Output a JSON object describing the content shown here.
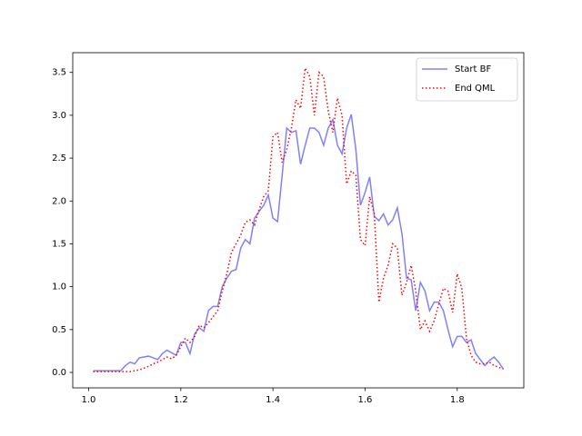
{
  "chart_data": {
    "type": "line",
    "x": [
      1.01,
      1.02,
      1.03,
      1.04,
      1.05,
      1.06,
      1.07,
      1.08,
      1.09,
      1.1,
      1.11,
      1.12,
      1.13,
      1.14,
      1.15,
      1.16,
      1.17,
      1.18,
      1.19,
      1.2,
      1.21,
      1.22,
      1.23,
      1.24,
      1.25,
      1.26,
      1.27,
      1.28,
      1.29,
      1.3,
      1.31,
      1.32,
      1.33,
      1.34,
      1.35,
      1.36,
      1.37,
      1.38,
      1.39,
      1.4,
      1.41,
      1.42,
      1.43,
      1.44,
      1.45,
      1.46,
      1.47,
      1.48,
      1.49,
      1.5,
      1.51,
      1.52,
      1.53,
      1.54,
      1.55,
      1.56,
      1.57,
      1.58,
      1.59,
      1.6,
      1.61,
      1.62,
      1.63,
      1.64,
      1.65,
      1.66,
      1.67,
      1.68,
      1.69,
      1.7,
      1.71,
      1.72,
      1.73,
      1.74,
      1.75,
      1.76,
      1.77,
      1.78,
      1.79,
      1.8,
      1.81,
      1.82,
      1.83,
      1.84,
      1.85,
      1.86,
      1.87,
      1.88,
      1.89,
      1.9
    ],
    "series": [
      {
        "name": "Start BF",
        "color": "#8080ff",
        "linestyle": "solid",
        "values": [
          0.02,
          0.02,
          0.02,
          0.02,
          0.02,
          0.02,
          0.02,
          0.08,
          0.12,
          0.1,
          0.17,
          0.18,
          0.19,
          0.17,
          0.15,
          0.22,
          0.26,
          0.23,
          0.2,
          0.35,
          0.35,
          0.22,
          0.45,
          0.52,
          0.48,
          0.72,
          0.77,
          0.77,
          1.0,
          1.1,
          1.18,
          1.2,
          1.45,
          1.55,
          1.5,
          1.8,
          1.88,
          1.95,
          2.07,
          1.8,
          1.76,
          2.3,
          2.85,
          2.8,
          2.82,
          2.43,
          2.65,
          2.85,
          2.85,
          2.8,
          2.65,
          2.85,
          2.95,
          2.65,
          2.55,
          2.85,
          3.01,
          2.6,
          1.95,
          2.1,
          2.28,
          1.82,
          1.77,
          1.85,
          1.72,
          1.78,
          1.92,
          1.62,
          1.1,
          1.08,
          0.72,
          1.05,
          0.95,
          0.72,
          0.82,
          0.82,
          0.72,
          0.5,
          0.3,
          0.42,
          0.42,
          0.35,
          0.38,
          0.22,
          0.15,
          0.08,
          0.14,
          0.18,
          0.12,
          0.04
        ]
      },
      {
        "name": "End QML",
        "color": "#ff0000",
        "linestyle": "dotted",
        "values": [
          0.01,
          0.01,
          0.01,
          0.01,
          0.01,
          0.01,
          0.01,
          0.01,
          0.01,
          0.02,
          0.03,
          0.05,
          0.07,
          0.1,
          0.12,
          0.15,
          0.18,
          0.16,
          0.2,
          0.3,
          0.4,
          0.35,
          0.42,
          0.55,
          0.52,
          0.58,
          0.65,
          0.72,
          0.95,
          1.15,
          1.4,
          1.5,
          1.6,
          1.75,
          1.78,
          1.72,
          1.9,
          2.05,
          2.12,
          2.75,
          2.8,
          2.45,
          2.6,
          2.85,
          3.18,
          3.08,
          3.55,
          3.45,
          3.0,
          3.5,
          3.45,
          3.05,
          2.8,
          3.2,
          3.0,
          2.2,
          2.35,
          2.3,
          1.55,
          1.48,
          2.05,
          1.85,
          0.82,
          1.1,
          1.25,
          1.5,
          1.45,
          0.9,
          1.05,
          1.25,
          0.95,
          0.5,
          0.6,
          0.48,
          0.6,
          0.8,
          0.98,
          0.95,
          0.7,
          1.15,
          0.98,
          0.4,
          0.2,
          0.12,
          0.1,
          0.1,
          0.12,
          0.08,
          0.06,
          0.04
        ]
      }
    ],
    "xlim": [
      0.9655,
      1.9445
    ],
    "ylim": [
      -0.18,
      3.73
    ],
    "xticks": [
      {
        "value": 1,
        "label": "1.0"
      },
      1.2,
      1.4,
      1.6,
      1.8
    ],
    "yticks": [
      {
        "value": 0,
        "label": "0.0"
      },
      0.5,
      {
        "value": 1,
        "label": "1.0"
      },
      1.5,
      {
        "value": 2,
        "label": "2.0"
      },
      2.5,
      {
        "value": 3,
        "label": "3.0"
      },
      3.5
    ],
    "legend": "upper right"
  }
}
